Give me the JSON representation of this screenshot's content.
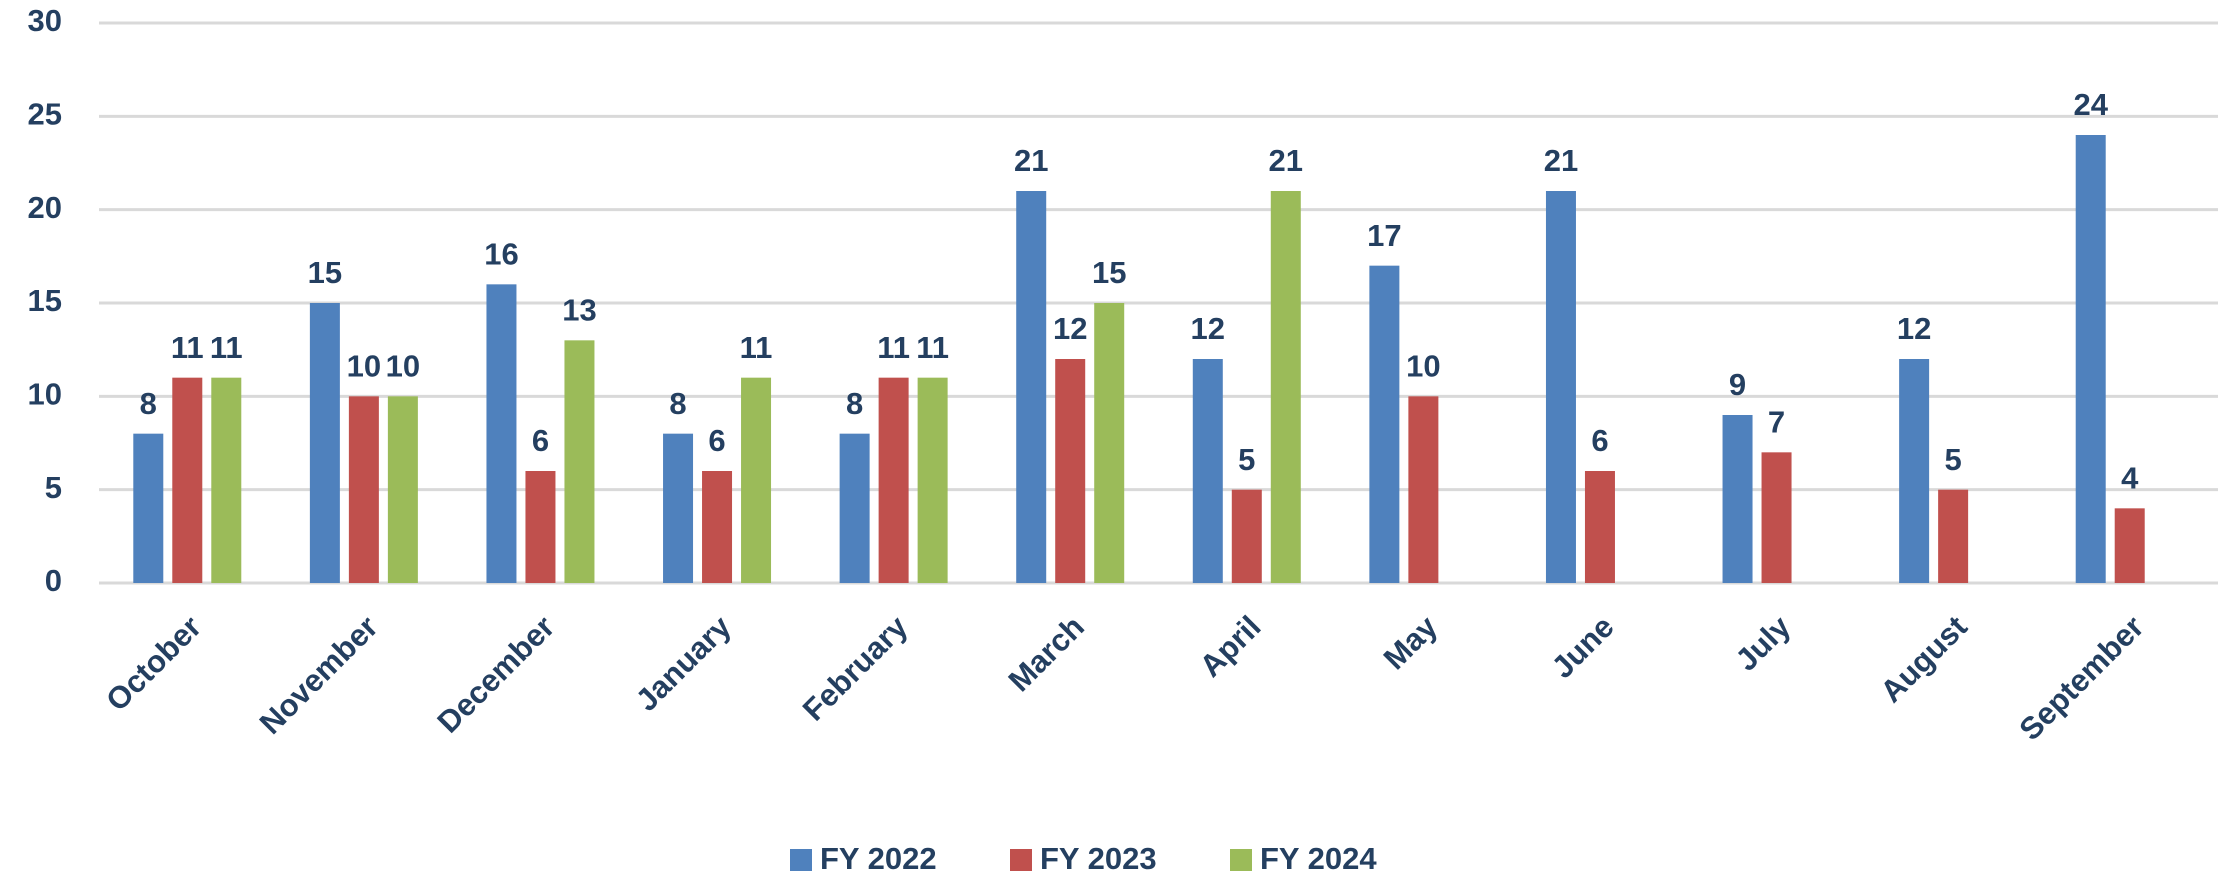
{
  "chart_data": {
    "type": "bar",
    "categories": [
      "October",
      "November",
      "December",
      "January",
      "February",
      "March",
      "April",
      "May",
      "June",
      "July",
      "August",
      "September"
    ],
    "series": [
      {
        "name": "FY 2022",
        "color": "#4f81bd",
        "values": [
          8,
          15,
          16,
          8,
          8,
          21,
          12,
          17,
          21,
          9,
          12,
          24
        ]
      },
      {
        "name": "FY 2023",
        "color": "#c0504d",
        "values": [
          11,
          10,
          6,
          6,
          11,
          12,
          5,
          10,
          6,
          7,
          5,
          4
        ]
      },
      {
        "name": "FY 2024",
        "color": "#9bbb59",
        "values": [
          11,
          10,
          13,
          11,
          11,
          15,
          21,
          null,
          null,
          null,
          null,
          null
        ]
      }
    ],
    "ylim": [
      0,
      30
    ],
    "yticks": [
      0,
      5,
      10,
      15,
      20,
      25,
      30
    ],
    "grid": true,
    "legend": "bottom"
  }
}
